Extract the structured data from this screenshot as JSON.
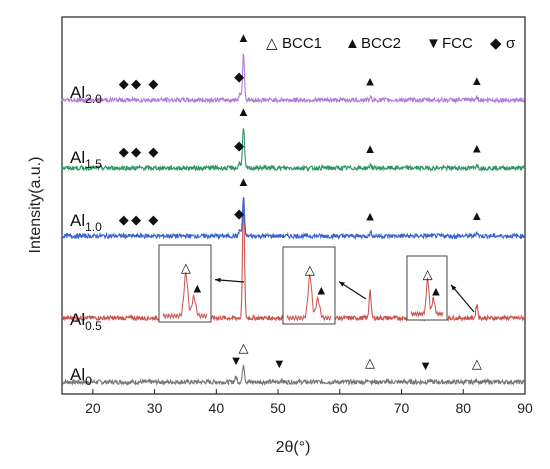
{
  "chart_data": {
    "type": "line",
    "xlabel": "2θ(°)",
    "ylabel": "Intensity(a.u.)",
    "xlim": [
      15,
      90
    ],
    "x_ticks": [
      "20",
      "30",
      "40",
      "50",
      "60",
      "70",
      "80",
      "90"
    ],
    "legend": {
      "placement": "top-right",
      "entries": [
        {
          "symbol": "△",
          "label": "BCC1"
        },
        {
          "symbol": "▲",
          "label": "BCC2"
        },
        {
          "symbol": "▼",
          "label": "FCC"
        },
        {
          "symbol": "◆",
          "label": "σ"
        }
      ]
    },
    "series": [
      {
        "main": "Al",
        "sub": "0",
        "color": "#777777",
        "baseline": 0.0,
        "peaks": [
          [
            43.2,
            0.25
          ],
          [
            44.4,
            0.9
          ],
          [
            50.5,
            0.1
          ],
          [
            64.7,
            0.14
          ],
          [
            74.5,
            0.08
          ],
          [
            82.2,
            0.1
          ]
        ],
        "markers": [
          {
            "x": 43.2,
            "symbol": "▼"
          },
          {
            "x": 44.4,
            "symbol": "△"
          },
          {
            "x": 50.2,
            "symbol": "▼"
          },
          {
            "x": 64.9,
            "symbol": "△"
          },
          {
            "x": 73.9,
            "symbol": "▼"
          },
          {
            "x": 82.2,
            "symbol": "△"
          }
        ]
      },
      {
        "main": "Al",
        "sub": "0.5",
        "color": "#c9544f",
        "baseline": 1.0,
        "peaks": [
          [
            44.4,
            6.0
          ],
          [
            64.9,
            1.4
          ],
          [
            82.2,
            0.7
          ]
        ],
        "markers": []
      },
      {
        "main": "Al",
        "sub": "1.0",
        "color": "#3a63c8",
        "baseline": 2.5,
        "peaks": [
          [
            43.8,
            0.3
          ],
          [
            44.4,
            1.9
          ],
          [
            65.0,
            0.18
          ],
          [
            82.2,
            0.2
          ]
        ],
        "markers": [
          {
            "x": 25.0,
            "symbol": "◆"
          },
          {
            "x": 27.0,
            "symbol": "◆"
          },
          {
            "x": 29.8,
            "symbol": "◆"
          },
          {
            "x": 43.7,
            "symbol": "◆"
          },
          {
            "x": 44.4,
            "symbol": "▲"
          },
          {
            "x": 64.9,
            "symbol": "▲"
          },
          {
            "x": 82.2,
            "symbol": "▲"
          }
        ]
      },
      {
        "main": "Al",
        "sub": "1.5",
        "color": "#2f9468",
        "baseline": 3.65,
        "peaks": [
          [
            43.8,
            0.3
          ],
          [
            44.4,
            2.0
          ],
          [
            65.0,
            0.15
          ],
          [
            82.2,
            0.18
          ]
        ],
        "markers": [
          {
            "x": 25.0,
            "symbol": "◆"
          },
          {
            "x": 27.0,
            "symbol": "◆"
          },
          {
            "x": 29.8,
            "symbol": "◆"
          },
          {
            "x": 43.7,
            "symbol": "◆"
          },
          {
            "x": 44.4,
            "symbol": "▲"
          },
          {
            "x": 64.9,
            "symbol": "▲"
          },
          {
            "x": 82.2,
            "symbol": "▲"
          }
        ]
      },
      {
        "main": "Al",
        "sub": "2.0",
        "color": "#b07ed6",
        "baseline": 4.75,
        "peaks": [
          [
            43.8,
            0.35
          ],
          [
            44.4,
            2.3
          ],
          [
            65.0,
            0.12
          ],
          [
            82.2,
            0.15
          ]
        ],
        "markers": [
          {
            "x": 25.0,
            "symbol": "◆"
          },
          {
            "x": 27.0,
            "symbol": "◆"
          },
          {
            "x": 29.8,
            "symbol": "◆"
          },
          {
            "x": 43.7,
            "symbol": "◆"
          },
          {
            "x": 44.4,
            "symbol": "▲"
          },
          {
            "x": 64.9,
            "symbol": "▲"
          },
          {
            "x": 82.2,
            "symbol": "▲"
          }
        ]
      }
    ],
    "insets": [
      {
        "peak_markers": [
          "△",
          "▲"
        ],
        "pointer_x": 44.0
      },
      {
        "peak_markers": [
          "△",
          "▲"
        ],
        "pointer_x": 64.5
      },
      {
        "peak_markers": [
          "△",
          "▲"
        ],
        "pointer_x": 81.8
      }
    ]
  }
}
